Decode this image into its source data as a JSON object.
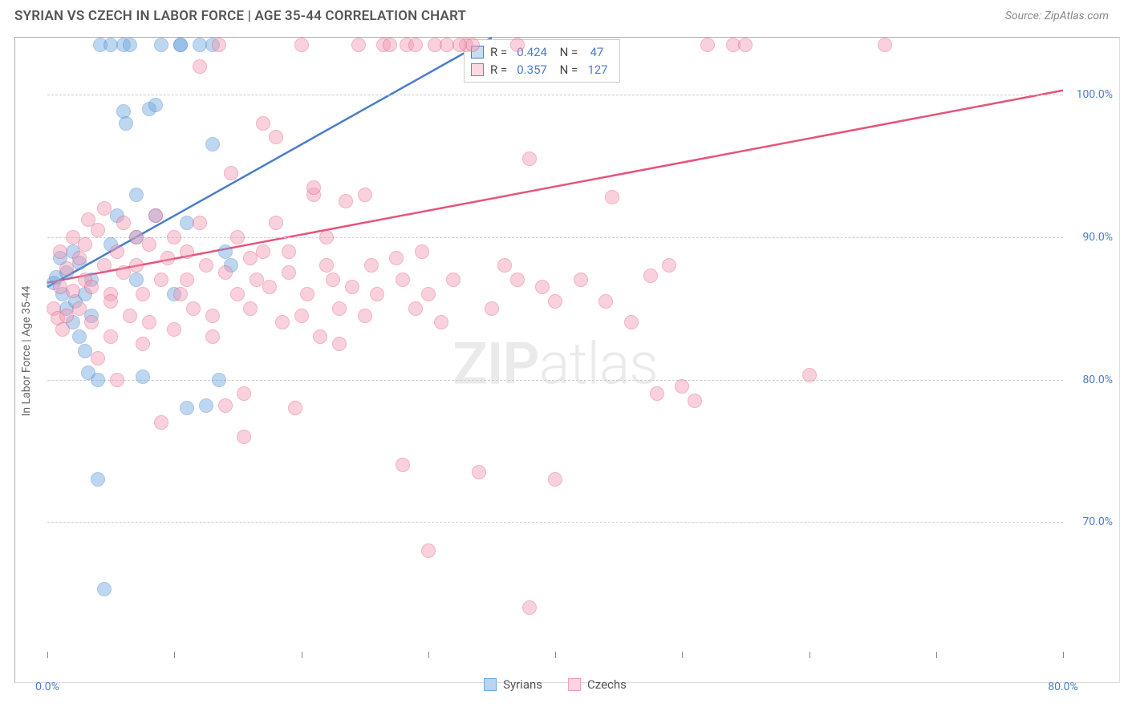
{
  "header": {
    "title": "SYRIAN VS CZECH IN LABOR FORCE | AGE 35-44 CORRELATION CHART",
    "source": "Source: ZipAtlas.com"
  },
  "watermark": {
    "part1": "ZIP",
    "part2": "atlas"
  },
  "chart": {
    "type": "scatter",
    "background_color": "#ffffff",
    "grid_color": "#cccccc",
    "axis_color": "#888888",
    "label_color": "#666666",
    "tick_color": "#4a7ec9",
    "ylabel": "In Labor Force | Age 35-44",
    "xlim": [
      0,
      80
    ],
    "ylim": [
      60,
      104
    ],
    "y_ticks": [
      70,
      80,
      90,
      100
    ],
    "y_tick_labels": [
      "70.0%",
      "80.0%",
      "90.0%",
      "100.0%"
    ],
    "x_ticks": [
      0,
      10,
      20,
      30,
      40,
      50,
      60,
      70,
      80
    ],
    "x_tick_labels_shown": {
      "0": "0.0%",
      "80": "80.0%"
    },
    "marker_radius": 9,
    "marker_opacity": 0.45,
    "line_width": 2.5,
    "series": [
      {
        "name": "Syrians",
        "color": "#6ea8e0",
        "stroke": "#4a7ec9",
        "r_value": "0.424",
        "n_value": "47",
        "trend": {
          "x1": 0,
          "y1": 86.5,
          "x2": 35,
          "y2": 104
        },
        "points": [
          [
            0.5,
            86.8
          ],
          [
            0.7,
            87.2
          ],
          [
            1.0,
            88.5
          ],
          [
            1.2,
            86.0
          ],
          [
            1.5,
            85.0
          ],
          [
            1.5,
            87.5
          ],
          [
            2.0,
            89.0
          ],
          [
            2.0,
            84.0
          ],
          [
            2.2,
            85.5
          ],
          [
            2.5,
            88.2
          ],
          [
            2.5,
            83.0
          ],
          [
            3.0,
            86.0
          ],
          [
            3.0,
            82.0
          ],
          [
            3.2,
            80.5
          ],
          [
            3.5,
            87.0
          ],
          [
            3.5,
            84.5
          ],
          [
            4.0,
            73.0
          ],
          [
            4.0,
            80.0
          ],
          [
            4.2,
            103.5
          ],
          [
            4.5,
            65.3
          ],
          [
            5.0,
            89.5
          ],
          [
            5.0,
            103.5
          ],
          [
            5.5,
            91.5
          ],
          [
            6.0,
            103.5
          ],
          [
            6.0,
            98.8
          ],
          [
            6.2,
            98.0
          ],
          [
            6.5,
            103.5
          ],
          [
            7.0,
            93.0
          ],
          [
            7.0,
            90.0
          ],
          [
            7.0,
            87.0
          ],
          [
            7.5,
            80.2
          ],
          [
            8.0,
            99.0
          ],
          [
            8.5,
            99.3
          ],
          [
            8.5,
            91.5
          ],
          [
            9.0,
            103.5
          ],
          [
            10.0,
            86.0
          ],
          [
            10.5,
            103.5
          ],
          [
            10.5,
            103.5
          ],
          [
            11.0,
            78.0
          ],
          [
            11.0,
            91.0
          ],
          [
            12.0,
            103.5
          ],
          [
            12.5,
            78.2
          ],
          [
            13.0,
            103.5
          ],
          [
            13.0,
            96.5
          ],
          [
            13.5,
            80.0
          ],
          [
            14.0,
            89.0
          ],
          [
            14.5,
            88.0
          ]
        ]
      },
      {
        "name": "Czechs",
        "color": "#f29bb4",
        "stroke": "#e5547a",
        "r_value": "0.357",
        "n_value": "127",
        "trend": {
          "x1": 0,
          "y1": 86.8,
          "x2": 80,
          "y2": 100.3
        },
        "points": [
          [
            0.5,
            85.0
          ],
          [
            0.8,
            84.3
          ],
          [
            1.0,
            86.5
          ],
          [
            1.0,
            89.0
          ],
          [
            1.2,
            83.5
          ],
          [
            1.5,
            87.8
          ],
          [
            1.5,
            84.5
          ],
          [
            2.0,
            86.2
          ],
          [
            2.0,
            90.0
          ],
          [
            2.5,
            88.5
          ],
          [
            2.5,
            85.0
          ],
          [
            3.0,
            87.0
          ],
          [
            3.0,
            89.5
          ],
          [
            3.2,
            91.2
          ],
          [
            3.5,
            86.5
          ],
          [
            3.5,
            84.0
          ],
          [
            4.0,
            81.5
          ],
          [
            4.0,
            90.5
          ],
          [
            4.5,
            88.0
          ],
          [
            4.5,
            92.0
          ],
          [
            5.0,
            86.0
          ],
          [
            5.0,
            83.0
          ],
          [
            5.0,
            85.5
          ],
          [
            5.5,
            89.0
          ],
          [
            5.5,
            80.0
          ],
          [
            6.0,
            87.5
          ],
          [
            6.0,
            91.0
          ],
          [
            6.5,
            84.5
          ],
          [
            7.0,
            88.0
          ],
          [
            7.0,
            90.0
          ],
          [
            7.5,
            86.0
          ],
          [
            7.5,
            82.5
          ],
          [
            8.0,
            89.5
          ],
          [
            8.0,
            84.0
          ],
          [
            8.5,
            91.5
          ],
          [
            9.0,
            77.0
          ],
          [
            9.0,
            87.0
          ],
          [
            9.5,
            88.5
          ],
          [
            10.0,
            83.5
          ],
          [
            10.0,
            90.0
          ],
          [
            10.5,
            86.0
          ],
          [
            11.0,
            89.0
          ],
          [
            11.0,
            87.0
          ],
          [
            11.5,
            85.0
          ],
          [
            12.0,
            91.0
          ],
          [
            12.0,
            102.0
          ],
          [
            12.5,
            88.0
          ],
          [
            13.0,
            84.5
          ],
          [
            13.0,
            83.0
          ],
          [
            13.5,
            103.5
          ],
          [
            14.0,
            78.2
          ],
          [
            14.0,
            87.5
          ],
          [
            14.5,
            94.5
          ],
          [
            15.0,
            90.0
          ],
          [
            15.0,
            86.0
          ],
          [
            15.5,
            79.0
          ],
          [
            15.5,
            76.0
          ],
          [
            16.0,
            88.5
          ],
          [
            16.0,
            85.0
          ],
          [
            16.5,
            87.0
          ],
          [
            17.0,
            98.0
          ],
          [
            17.0,
            89.0
          ],
          [
            17.5,
            86.5
          ],
          [
            18.0,
            97.0
          ],
          [
            18.0,
            91.0
          ],
          [
            18.5,
            84.0
          ],
          [
            19.0,
            87.5
          ],
          [
            19.0,
            89.0
          ],
          [
            19.5,
            78.0
          ],
          [
            20.0,
            103.5
          ],
          [
            20.0,
            84.5
          ],
          [
            20.5,
            86.0
          ],
          [
            21.0,
            93.0
          ],
          [
            21.0,
            93.5
          ],
          [
            21.5,
            83.0
          ],
          [
            22.0,
            88.0
          ],
          [
            22.0,
            90.0
          ],
          [
            22.5,
            87.0
          ],
          [
            23.0,
            85.0
          ],
          [
            23.0,
            82.5
          ],
          [
            23.5,
            92.5
          ],
          [
            24.0,
            86.5
          ],
          [
            24.5,
            103.5
          ],
          [
            25.0,
            84.5
          ],
          [
            25.0,
            93.0
          ],
          [
            25.5,
            88.0
          ],
          [
            26.0,
            86.0
          ],
          [
            26.5,
            103.5
          ],
          [
            27.0,
            103.5
          ],
          [
            27.5,
            88.5
          ],
          [
            28.0,
            74.0
          ],
          [
            28.0,
            87.0
          ],
          [
            28.3,
            103.5
          ],
          [
            29.0,
            85.0
          ],
          [
            29.0,
            103.5
          ],
          [
            29.5,
            89.0
          ],
          [
            30.0,
            68.0
          ],
          [
            30.0,
            86.0
          ],
          [
            30.5,
            103.5
          ],
          [
            31.0,
            84.0
          ],
          [
            31.5,
            103.5
          ],
          [
            32.0,
            87.0
          ],
          [
            33.0,
            103.5
          ],
          [
            33.5,
            103.5
          ],
          [
            34.0,
            73.5
          ],
          [
            35.0,
            85.0
          ],
          [
            36.0,
            88.0
          ],
          [
            37.0,
            87.0
          ],
          [
            37.0,
            103.5
          ],
          [
            38.0,
            95.5
          ],
          [
            38.0,
            64.0
          ],
          [
            39.0,
            86.5
          ],
          [
            40.0,
            85.5
          ],
          [
            40.0,
            73.0
          ],
          [
            42.0,
            87.0
          ],
          [
            44.0,
            85.5
          ],
          [
            44.5,
            92.8
          ],
          [
            46.0,
            84.0
          ],
          [
            47.5,
            87.3
          ],
          [
            48.0,
            79.0
          ],
          [
            49.0,
            88.0
          ],
          [
            50.0,
            79.5
          ],
          [
            51.0,
            78.5
          ],
          [
            52.0,
            103.5
          ],
          [
            54.0,
            103.5
          ],
          [
            55.0,
            103.5
          ],
          [
            60.0,
            80.3
          ],
          [
            66.0,
            103.5
          ],
          [
            32.5,
            103.5
          ]
        ]
      }
    ]
  },
  "legend_bottom": [
    {
      "label": "Syrians",
      "fill": "#b8d4f0",
      "stroke": "#6ea8e0"
    },
    {
      "label": "Czechs",
      "fill": "#fbd5df",
      "stroke": "#f29bb4"
    }
  ]
}
